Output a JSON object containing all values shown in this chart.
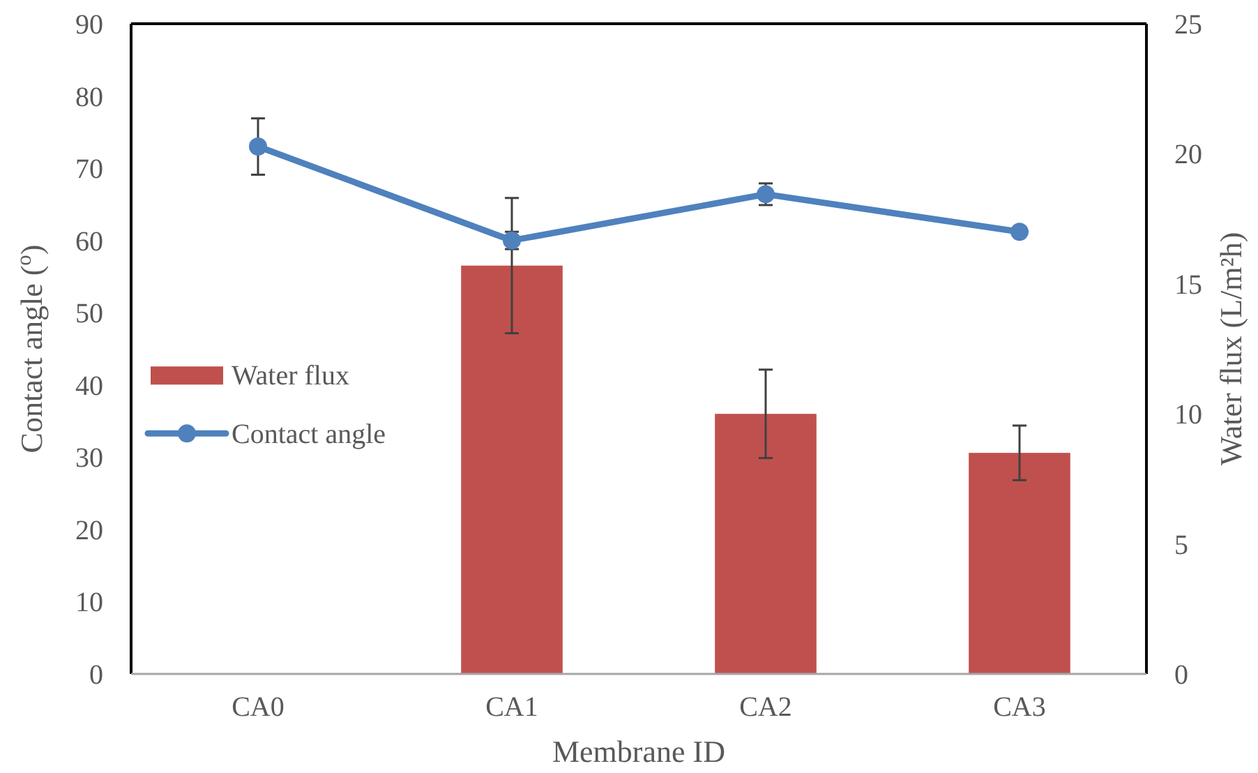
{
  "chart_data": {
    "type": "bar",
    "xlabel": "Membrane ID",
    "ylabel": "Contact angle ($^{o}$)",
    "y2label": "Water flux (L/m²h)",
    "categories": [
      "CA0",
      "CA1",
      "CA2",
      "CA3"
    ],
    "series": [
      {
        "name": "Water flux",
        "axis": "y2",
        "color": "#c0504d",
        "values": [
          0,
          15.7,
          10.0,
          8.5
        ],
        "errors": [
          null,
          2.6,
          1.7,
          1.05
        ]
      },
      {
        "name": "Contact angle",
        "type": "line",
        "color": "#4f81bd",
        "values": [
          73.0,
          60.0,
          66.4,
          61.2
        ],
        "errors": [
          3.9,
          1.2,
          1.5,
          null
        ]
      }
    ],
    "ylim": [
      0,
      90
    ],
    "yticks": [
      0,
      10,
      20,
      30,
      40,
      50,
      60,
      70,
      80,
      90
    ],
    "y2lim": [
      0,
      25
    ],
    "y2ticks": [
      0,
      5,
      10,
      15,
      20,
      25
    ],
    "legend": "left",
    "marker": "circle",
    "grid": false
  }
}
